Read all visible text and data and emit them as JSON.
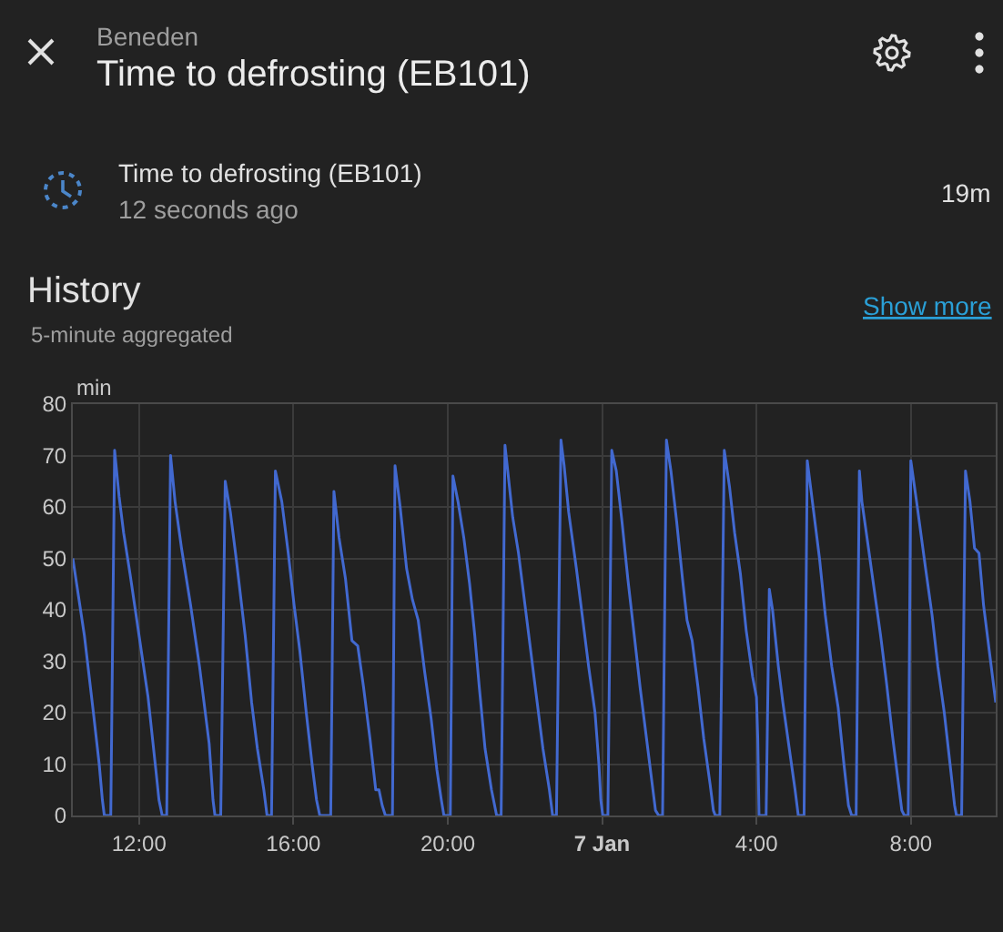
{
  "chart_data": {
    "type": "line",
    "title": "History",
    "subtitle": "5-minute aggregated",
    "ylabel": "min",
    "annotations": [
      "Beneden",
      "Time to defrosting (EB101)",
      "Time to defrosting (EB101)",
      "12 seconds ago",
      "19m",
      "Show more"
    ],
    "x": [
      "--01-06T10:17",
      "--01-06T10:23",
      "--01-06T10:35",
      "--01-06T10:49",
      "--01-06T10:58",
      "--01-06T11:03",
      "--01-06T11:06",
      "--01-06T11:16",
      "--01-06T11:22",
      "--01-06T11:29",
      "--01-06T11:36",
      "--01-06T11:46",
      "--01-06T12:00",
      "--01-06T12:14",
      "--01-06T12:26",
      "--01-06T12:31",
      "--01-06T12:36",
      "--01-06T12:43",
      "--01-06T12:49",
      "--01-06T12:56",
      "--01-06T13:06",
      "--01-06T13:20",
      "--01-06T13:34",
      "--01-06T13:49",
      "--01-06T13:55",
      "--01-06T13:58",
      "--01-06T14:07",
      "--01-06T14:14",
      "--01-06T14:22",
      "--01-06T14:31",
      "--01-06T14:45",
      "--01-06T14:55",
      "--01-06T15:04",
      "--01-06T15:14",
      "--01-06T15:19",
      "--01-06T15:26",
      "--01-06T15:32",
      "--01-06T15:42",
      "--01-06T15:52",
      "--01-06T16:01",
      "--01-06T16:10",
      "--01-06T16:20",
      "--01-06T16:29",
      "--01-06T16:36",
      "--01-06T16:41",
      "--01-06T16:58",
      "--01-06T17:03",
      "--01-06T17:11",
      "--01-06T17:21",
      "--01-06T17:31",
      "--01-06T17:40",
      "--01-06T17:49",
      "--01-06T17:59",
      "--01-06T18:08",
      "--01-06T18:13",
      "--01-06T18:18",
      "--01-06T18:23",
      "--01-06T18:34",
      "--01-06T18:38",
      "--01-06T18:46",
      "--01-06T18:56",
      "--01-06T19:05",
      "--01-06T19:14",
      "--01-06T19:24",
      "--01-06T19:34",
      "--01-06T19:43",
      "--01-06T19:50",
      "--01-06T19:54",
      "--01-06T20:04",
      "--01-06T20:08",
      "--01-06T20:16",
      "--01-06T20:25",
      "--01-06T20:34",
      "--01-06T20:42",
      "--01-06T20:49",
      "--01-06T20:58",
      "--01-06T21:08",
      "--01-06T21:16",
      "--01-06T21:23",
      "--01-06T21:29",
      "--01-06T21:41",
      "--01-06T21:50",
      "--01-06T22:00",
      "--01-06T22:09",
      "--01-06T22:19",
      "--01-06T22:28",
      "--01-06T22:38",
      "--01-06T22:43",
      "--01-06T22:49",
      "--01-06T22:56",
      "--01-06T23:01",
      "--01-06T23:08",
      "--01-06T23:20",
      "--01-06T23:29",
      "--01-06T23:39",
      "--01-06T23:49",
      "--01-06T23:55",
      "--01-06T23:58",
      "--01-07T00:01",
      "--01-07T00:09",
      "--01-07T00:15",
      "--01-07T00:22",
      "--01-07T00:31",
      "--01-07T00:40",
      "--01-07T00:50",
      "--01-07T00:59",
      "--01-07T01:09",
      "--01-07T01:18",
      "--01-07T01:23",
      "--01-07T01:28",
      "--01-07T01:34",
      "--01-07T01:40",
      "--01-07T01:47",
      "--01-07T01:56",
      "--01-07T02:05",
      "--01-07T02:12",
      "--01-07T02:20",
      "--01-07T02:29",
      "--01-07T02:38",
      "--01-07T02:48",
      "--01-07T02:53",
      "--01-07T02:56",
      "--01-07T03:03",
      "--01-07T03:10",
      "--01-07T03:18",
      "--01-07T03:26",
      "--01-07T03:35",
      "--01-07T03:44",
      "--01-07T03:54",
      "--01-07T04:00",
      "--01-07T04:02",
      "--01-07T04:04",
      "--01-07T04:15",
      "--01-07T04:20",
      "--01-07T04:25",
      "--01-07T04:34",
      "--01-07T04:41",
      "--01-07T04:51",
      "--01-07T05:00",
      "--01-07T05:05",
      "--01-07T05:14",
      "--01-07T05:19",
      "--01-07T05:29",
      "--01-07T05:38",
      "--01-07T05:47",
      "--01-07T05:57",
      "--01-07T06:07",
      "--01-07T06:16",
      "--01-07T06:23",
      "--01-07T06:28",
      "--01-07T06:35",
      "--01-07T06:40",
      "--01-07T06:44",
      "--01-07T06:53",
      "--01-07T07:03",
      "--01-07T07:13",
      "--01-07T07:22",
      "--01-07T07:31",
      "--01-07T07:41",
      "--01-07T07:46",
      "--01-07T07:50",
      "--01-07T07:56",
      "--01-07T08:00",
      "--01-07T08:09",
      "--01-07T08:23",
      "--01-07T08:33",
      "--01-07T08:42",
      "--01-07T08:52",
      "--01-07T09:01",
      "--01-07T09:08",
      "--01-07T09:11",
      "--01-07T09:19",
      "--01-07T09:25",
      "--01-07T09:32",
      "--01-07T09:39",
      "--01-07T09:46",
      "--01-07T09:53",
      "--01-07T10:02",
      "--01-07T10:12"
    ],
    "series": [
      {
        "color": "#4269d0",
        "values": [
          50,
          45,
          35,
          20,
          10,
          3,
          0,
          0,
          71,
          62,
          55,
          47,
          35,
          23,
          9,
          3,
          0,
          0,
          70,
          61,
          52,
          41,
          29,
          14,
          3,
          0,
          0,
          65,
          59,
          50,
          35,
          22,
          13,
          5,
          0,
          0,
          67,
          61,
          51,
          41,
          32,
          20,
          10,
          3,
          0,
          0,
          63,
          54,
          46,
          34,
          33,
          25,
          15,
          5,
          5,
          2,
          0,
          0,
          68,
          60,
          48,
          42,
          38,
          28,
          19,
          9,
          3,
          0,
          0,
          66,
          61,
          54,
          45,
          35,
          25,
          13,
          5,
          0,
          0,
          72,
          58,
          51,
          41,
          32,
          22,
          13,
          5,
          0,
          0,
          73,
          68,
          59,
          48,
          39,
          29,
          20,
          10,
          3,
          0,
          0,
          71,
          67,
          57,
          46,
          35,
          25,
          15,
          6,
          1,
          0,
          0,
          73,
          67,
          57,
          46,
          38,
          34,
          25,
          15,
          6,
          1,
          0,
          0,
          71,
          64,
          55,
          47,
          36,
          27,
          23,
          15,
          0,
          0,
          44,
          40,
          29,
          22,
          13,
          5,
          0,
          0,
          69,
          59,
          50,
          39,
          29,
          21,
          10,
          2,
          0,
          0,
          67,
          61,
          53,
          44,
          35,
          26,
          16,
          6,
          1,
          0,
          0,
          69,
          61,
          48,
          39,
          29,
          20,
          10,
          2,
          0,
          0,
          67,
          61,
          52,
          51,
          41,
          32,
          22
        ]
      }
    ],
    "xlim": [
      "--01-06T10:17",
      "--01-07T10:12"
    ],
    "xticks": [
      {
        "value": "--01-06T12:00",
        "label": "12:00"
      },
      {
        "value": "--01-06T16:00",
        "label": "16:00"
      },
      {
        "value": "--01-06T20:00",
        "label": "20:00"
      },
      {
        "value": "--01-07T00:00",
        "label": "7 Jan"
      },
      {
        "value": "--01-07T04:00",
        "label": "4:00"
      },
      {
        "value": "--01-07T08:00",
        "label": "8:00"
      }
    ],
    "ylim": [
      0,
      80
    ],
    "yticks": [
      0,
      10,
      20,
      30,
      40,
      50,
      60,
      70,
      80
    ],
    "grid": true,
    "line_style": "solid"
  }
}
